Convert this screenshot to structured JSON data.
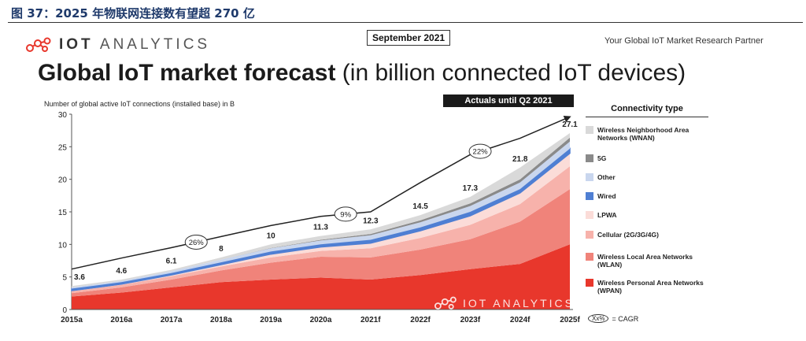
{
  "caption": "图 37：2025 年物联网连接数有望超 270 亿",
  "brand": {
    "strong": "IOT",
    "rest": "ANALYTICS"
  },
  "date_label": "September 2021",
  "partner": "Your Global IoT Market Research Partner",
  "title": {
    "bold": "Global IoT market forecast",
    "rest": "(in billion connected IoT devices)"
  },
  "actuals_label": "Actuals until Q2 2021",
  "cagr_note": {
    "symbol": "Xx%",
    "text": "= CAGR"
  },
  "watermark": "IOT ANALYTICS",
  "chart_data": {
    "type": "area",
    "stacked": true,
    "ylabel": "Number of global active IoT connections (installed base) in B",
    "ylim": [
      0,
      30
    ],
    "yticks": [
      0,
      5,
      10,
      15,
      20,
      25,
      30
    ],
    "categories": [
      "2015a",
      "2016a",
      "2017a",
      "2018a",
      "2019a",
      "2020a",
      "2021f",
      "2022f",
      "2023f",
      "2024f",
      "2025f"
    ],
    "totals": [
      3.6,
      4.6,
      6.1,
      8.0,
      10.0,
      11.3,
      12.3,
      14.5,
      17.3,
      21.8,
      27.1
    ],
    "trend_line": [
      6.2,
      7.9,
      9.5,
      11.2,
      12.9,
      14.3,
      15.0,
      19.5,
      23.8,
      26.3,
      29.6
    ],
    "cagr_labels": [
      {
        "value": "26%",
        "position": 2.5
      },
      {
        "value": "9%",
        "position": 5.5
      },
      {
        "value": "22%",
        "position": 8.2
      }
    ],
    "legend_title": "Connectivity type",
    "series": [
      {
        "name": "Wireless Personal Area Networks (WPAN)",
        "color": "#e8372c",
        "values": [
          2.0,
          2.6,
          3.4,
          4.2,
          4.6,
          4.9,
          4.6,
          5.3,
          6.2,
          7.0,
          10.0
        ]
      },
      {
        "name": "Wireless Local Area Networks (WLAN)",
        "color": "#f0837a",
        "values": [
          0.5,
          0.8,
          1.2,
          1.8,
          2.6,
          3.2,
          3.4,
          3.9,
          4.6,
          6.5,
          8.5
        ]
      },
      {
        "name": "Cellular (2G/3G/4G)",
        "color": "#f7b2ab",
        "values": [
          0.3,
          0.4,
          0.5,
          0.6,
          0.8,
          0.9,
          1.4,
          1.8,
          2.2,
          2.7,
          3.5
        ]
      },
      {
        "name": "LPWA",
        "color": "#fbdcd8",
        "values": [
          0.1,
          0.1,
          0.2,
          0.3,
          0.5,
          0.6,
          0.8,
          1.1,
          1.4,
          1.7,
          2.0
        ]
      },
      {
        "name": "Wired",
        "color": "#4f7fd3",
        "values": [
          0.3,
          0.3,
          0.3,
          0.35,
          0.4,
          0.4,
          0.5,
          0.5,
          0.6,
          0.6,
          0.7
        ]
      },
      {
        "name": "Other",
        "color": "#c9d6ee",
        "values": [
          0.2,
          0.2,
          0.3,
          0.4,
          0.5,
          0.6,
          0.7,
          0.8,
          0.9,
          1.0,
          1.1
        ]
      },
      {
        "name": "5G",
        "color": "#8a8a8a",
        "values": [
          0.0,
          0.0,
          0.0,
          0.0,
          0.05,
          0.1,
          0.2,
          0.3,
          0.4,
          0.5,
          0.6
        ]
      },
      {
        "name": "Wireless Neighborhood Area Networks (WNAN)",
        "color": "#d9d9d9",
        "values": [
          0.2,
          0.2,
          0.2,
          0.35,
          0.55,
          0.6,
          0.7,
          0.8,
          1.0,
          1.8,
          0.7
        ]
      }
    ]
  }
}
